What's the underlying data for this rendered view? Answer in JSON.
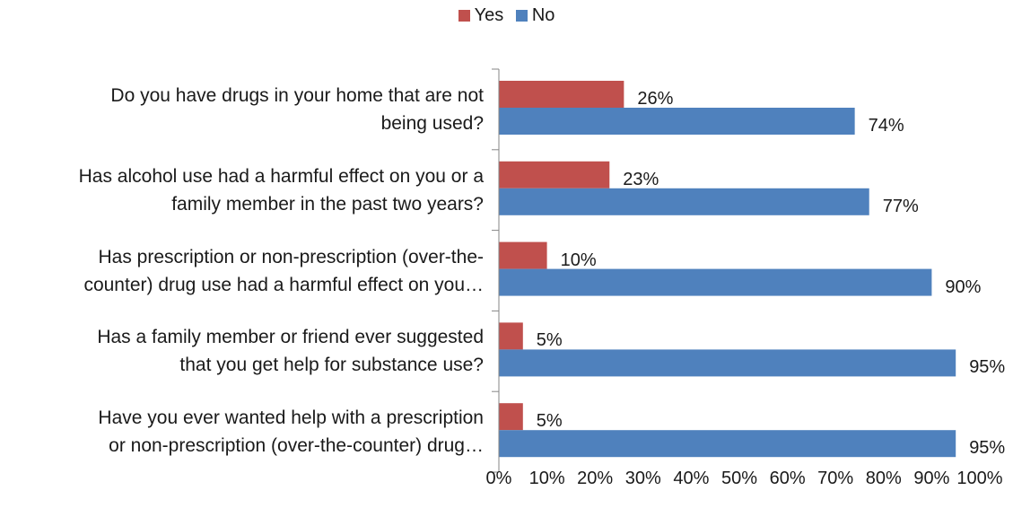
{
  "chart_data": {
    "type": "bar",
    "orientation": "horizontal",
    "categories": [
      "Do you have drugs in your home that are not being used?",
      "Has alcohol use had a harmful effect on you or a family member in the past two years?",
      "Has prescription or non-prescription (over-the-counter) drug use had a harmful effect on you…",
      "Has a family member or friend ever suggested that you get help for substance use?",
      "Have you ever wanted help with a prescription or non-prescription (over-the-counter) drug…"
    ],
    "category_lines": [
      [
        "Do you have drugs in your home that are not",
        "being used?"
      ],
      [
        "Has alcohol use had a harmful effect on you or a",
        "family member in the past two years?"
      ],
      [
        "Has prescription or non-prescription (over-the-",
        "counter) drug use had a harmful effect on you…"
      ],
      [
        "Has a family member or friend ever suggested",
        "that you get help for substance use?"
      ],
      [
        "Have you ever wanted help with a prescription",
        "or non-prescription (over-the-counter) drug…"
      ]
    ],
    "series": [
      {
        "name": "Yes",
        "color": "#c0504d",
        "values": [
          26,
          23,
          10,
          5,
          5
        ],
        "labels": [
          "26%",
          "23%",
          "10%",
          "5%",
          "5%"
        ]
      },
      {
        "name": "No",
        "color": "#4f81bd",
        "values": [
          74,
          77,
          90,
          95,
          95
        ],
        "labels": [
          "74%",
          "77%",
          "90%",
          "95%",
          "95%"
        ]
      }
    ],
    "xlim": [
      0,
      100
    ],
    "xticks": [
      "0%",
      "10%",
      "20%",
      "30%",
      "40%",
      "50%",
      "60%",
      "70%",
      "80%",
      "90%",
      "100%"
    ],
    "legend_position": "top",
    "grid": false
  }
}
